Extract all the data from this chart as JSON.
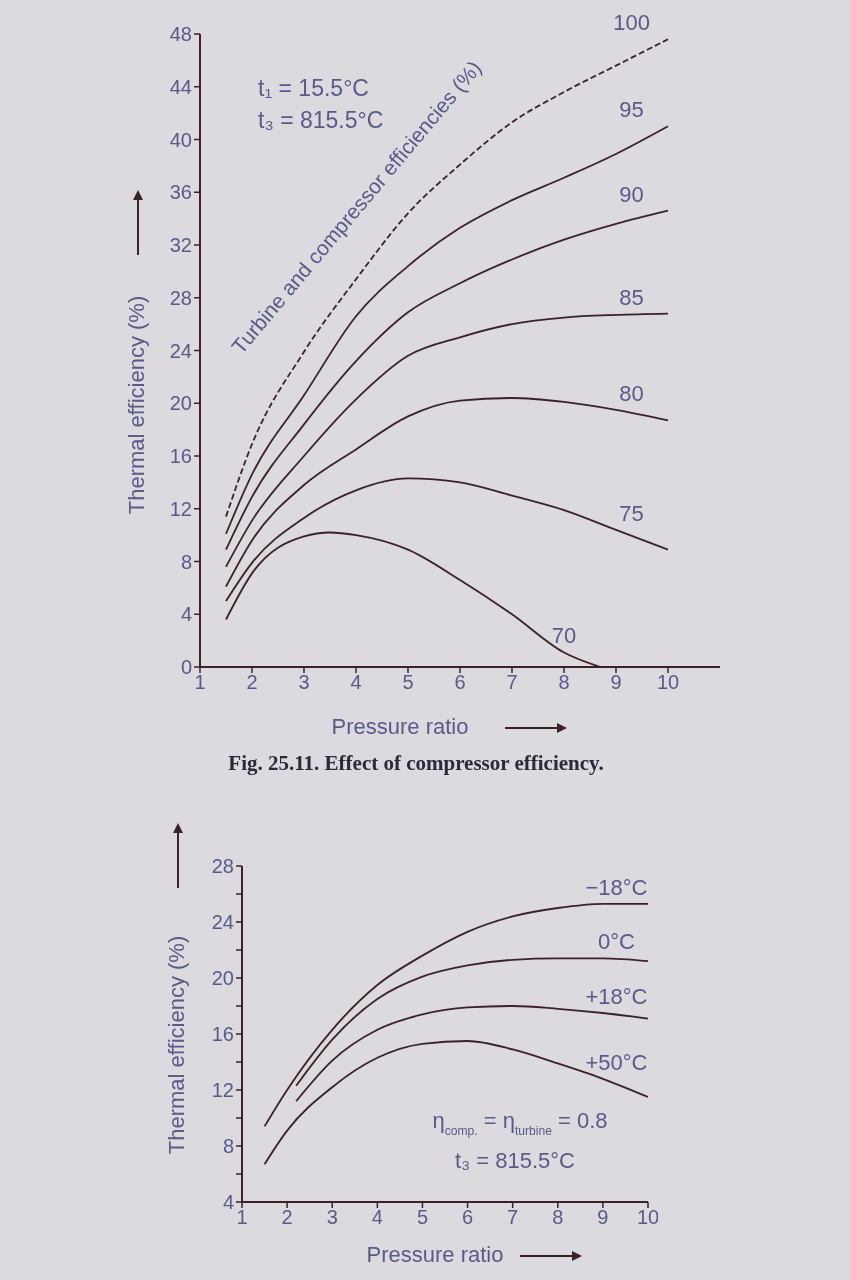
{
  "chart_data": [
    {
      "type": "line",
      "xlabel": "Pressure ratio",
      "ylabel": "Thermal efficiency (%)",
      "xlim": [
        1,
        11
      ],
      "ylim": [
        0,
        48
      ],
      "xticks": [
        1,
        2,
        3,
        4,
        5,
        6,
        7,
        8,
        9,
        10
      ],
      "yticks": [
        0,
        4,
        8,
        12,
        16,
        20,
        24,
        28,
        32,
        36,
        40,
        44,
        48
      ],
      "annotations": [
        "t₁ = 15.5°C",
        "t₃ = 815.5°C",
        "Turbine and compressor efficiencies (%)",
        "Fig. 25.11. Effect of compressor efficiency."
      ],
      "series": [
        {
          "name": "100",
          "color": "#3b2228",
          "line_style": "dashed",
          "x": [
            1.5,
            2,
            3,
            4,
            5,
            6,
            7,
            8,
            9,
            10
          ],
          "values": [
            11.4,
            16.9,
            23.9,
            29.4,
            34.4,
            38.1,
            41.3,
            43.6,
            45.6,
            47.6
          ]
        },
        {
          "name": "95",
          "color": "#3b2228",
          "line_style": "solid",
          "x": [
            1.5,
            2,
            3,
            4,
            5,
            6,
            7,
            8,
            9,
            10
          ],
          "values": [
            10.1,
            14.6,
            20.6,
            26.6,
            30.4,
            33.3,
            35.4,
            37.1,
            38.9,
            41.0
          ]
        },
        {
          "name": "90",
          "color": "#3b2228",
          "line_style": "solid",
          "x": [
            1.5,
            2,
            3,
            4,
            5,
            6,
            7,
            8,
            9,
            10
          ],
          "values": [
            8.9,
            12.9,
            18.4,
            23.2,
            26.9,
            29.1,
            30.9,
            32.4,
            33.6,
            34.6
          ]
        },
        {
          "name": "85",
          "color": "#3b2228",
          "line_style": "solid",
          "x": [
            1.5,
            2,
            3,
            4,
            5,
            6,
            7,
            8,
            9,
            10
          ],
          "values": [
            7.6,
            11.1,
            16.0,
            20.3,
            23.6,
            25.0,
            26.0,
            26.5,
            26.7,
            26.8
          ]
        },
        {
          "name": "80",
          "color": "#3b2228",
          "line_style": "solid",
          "x": [
            1.5,
            2,
            3,
            4,
            5,
            6,
            7,
            8,
            9,
            10
          ],
          "values": [
            6.1,
            9.6,
            13.8,
            16.5,
            19.0,
            20.2,
            20.4,
            20.1,
            19.5,
            18.7
          ]
        },
        {
          "name": "75",
          "color": "#3b2228",
          "line_style": "solid",
          "x": [
            1.5,
            2,
            3,
            4,
            5,
            6,
            7,
            8,
            9,
            10
          ],
          "values": [
            5.0,
            7.9,
            11.3,
            13.4,
            14.3,
            14.0,
            13.0,
            11.9,
            10.4,
            8.9
          ]
        },
        {
          "name": "70",
          "color": "#3b2228",
          "line_style": "solid",
          "x": [
            1.5,
            2,
            3,
            3.5,
            4,
            5,
            6,
            7,
            8,
            8.7
          ],
          "values": [
            3.6,
            7.1,
            9.9,
            10.2,
            10.0,
            8.9,
            6.6,
            4.0,
            1.1,
            0
          ]
        }
      ]
    },
    {
      "type": "line",
      "xlabel": "Pressure ratio",
      "ylabel": "Thermal efficiency (%)",
      "xlim": [
        1,
        10
      ],
      "ylim": [
        4,
        28
      ],
      "xticks": [
        1,
        2,
        3,
        4,
        5,
        6,
        7,
        8,
        9,
        10
      ],
      "yticks": [
        4,
        {
          "value": 6,
          "label": null
        },
        8,
        {
          "value": 10,
          "label": null
        },
        12,
        {
          "value": 14,
          "label": null
        },
        16,
        {
          "value": 18,
          "label": null
        },
        20,
        {
          "value": 22,
          "label": null
        },
        24,
        {
          "value": 26,
          "label": null
        },
        28
      ],
      "annotations": [
        "η$_{comp.}$ = η$_{turbine}$ = 0.8",
        "t₃ = 815.5°C"
      ],
      "series": [
        {
          "name": "−18°C",
          "color": "#3b2228",
          "line_style": "solid",
          "x": [
            1.5,
            2,
            3,
            4,
            5,
            6,
            7,
            8,
            9,
            10
          ],
          "values": [
            9.4,
            12.0,
            16.3,
            19.5,
            21.6,
            23.3,
            24.4,
            25.0,
            25.3,
            25.3
          ]
        },
        {
          "name": "0°C",
          "color": "#3b2228",
          "line_style": "solid",
          "x": [
            2.2,
            3,
            4,
            5,
            6,
            7,
            8,
            9,
            10
          ],
          "values": [
            12.3,
            15.6,
            18.5,
            20.1,
            20.9,
            21.3,
            21.4,
            21.4,
            21.2
          ]
        },
        {
          "name": "+18°C",
          "color": "#3b2228",
          "line_style": "solid",
          "x": [
            2.2,
            3,
            4,
            5,
            6,
            7,
            8,
            9,
            10
          ],
          "values": [
            11.2,
            14.1,
            16.3,
            17.4,
            17.9,
            18.0,
            17.8,
            17.5,
            17.1
          ]
        },
        {
          "name": "+50°C",
          "color": "#3b2228",
          "line_style": "solid",
          "x": [
            1.5,
            2,
            3,
            4,
            5,
            6,
            7,
            8,
            9,
            10
          ],
          "values": [
            6.7,
            9.1,
            12.2,
            14.3,
            15.3,
            15.5,
            14.9,
            13.9,
            12.8,
            11.5
          ]
        }
      ]
    }
  ]
}
